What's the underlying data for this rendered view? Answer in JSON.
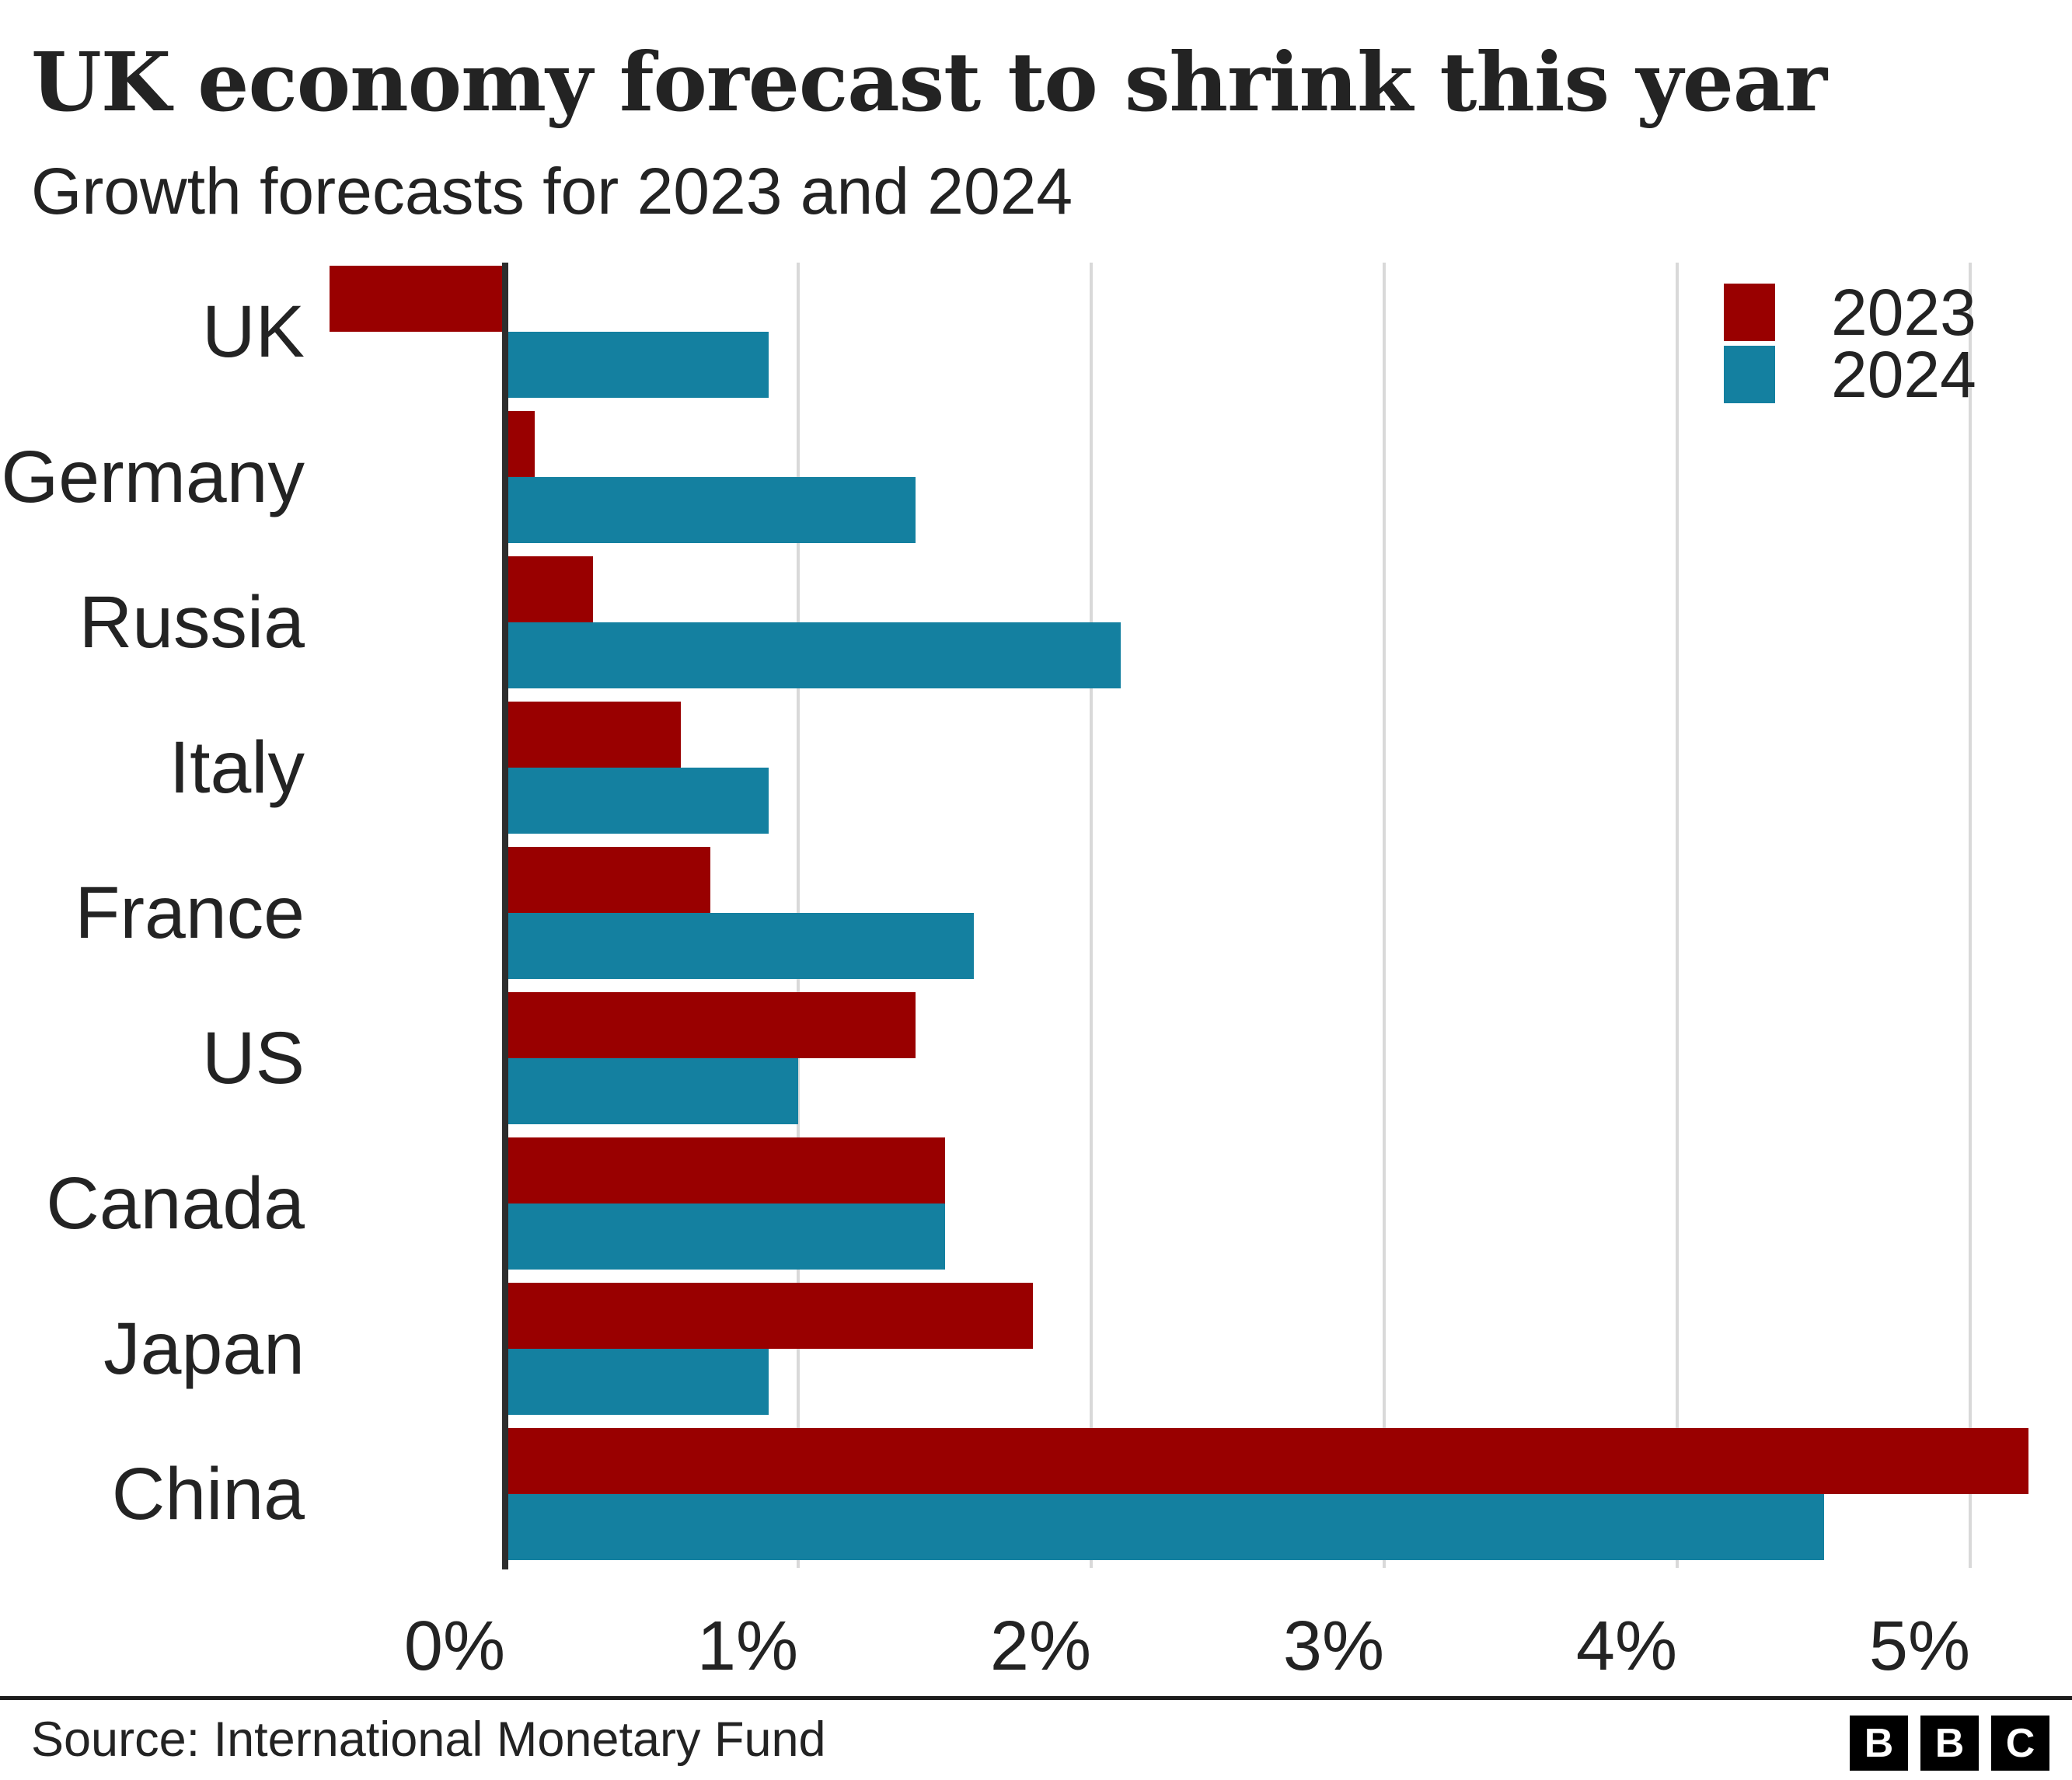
{
  "header": {
    "title": "UK economy forecast to shrink this year",
    "subtitle": "Growth forecasts for 2023 and 2024"
  },
  "chart_data": {
    "type": "bar",
    "orientation": "horizontal",
    "title": "UK economy forecast to shrink this year",
    "subtitle": "Growth forecasts for 2023 and 2024",
    "categories": [
      "UK",
      "Germany",
      "Russia",
      "Italy",
      "France",
      "US",
      "Canada",
      "Japan",
      "China"
    ],
    "series": [
      {
        "name": "2023",
        "color": "#990000",
        "values": [
          -0.6,
          0.1,
          0.3,
          0.6,
          0.7,
          1.4,
          1.5,
          1.8,
          5.2
        ]
      },
      {
        "name": "2024",
        "color": "#1480a0",
        "values": [
          0.9,
          1.4,
          2.1,
          0.9,
          1.6,
          1.0,
          1.5,
          0.9,
          4.5
        ]
      }
    ],
    "unit": "%",
    "x_ticks": [
      "0%",
      "1%",
      "2%",
      "3%",
      "4%",
      "5%"
    ],
    "x_tick_values": [
      0,
      1,
      2,
      3,
      4,
      5
    ],
    "xlim": [
      -0.65,
      5.35
    ],
    "grid": "vertical",
    "legend_position": "top-right",
    "axis_color": "#2d2d2d",
    "gridline_color": "#d9d9d9"
  },
  "footer": {
    "source": "Source: International Monetary Fund",
    "logo_letters": [
      "B",
      "B",
      "C"
    ]
  }
}
